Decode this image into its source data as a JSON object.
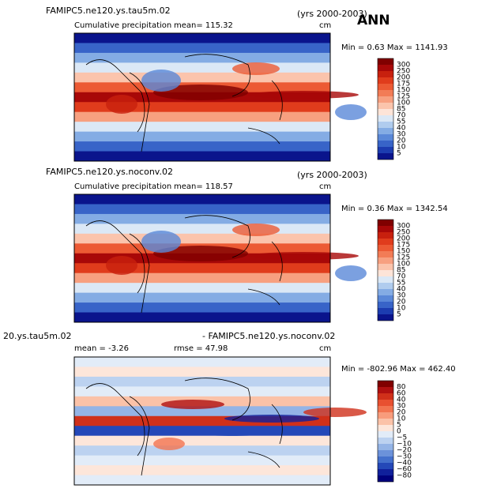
{
  "season": "ANN",
  "panels": [
    {
      "title": "FAMIPC5.ne120.ys.tau5m.02",
      "years": "(yrs 2000-2003)",
      "subtitle": "Cumulative precipitation",
      "mean": "mean= 115.32",
      "units": "cm",
      "minmax": "Min =    0.63  Max = 1141.93",
      "levels": [
        "300",
        "250",
        "200",
        "175",
        "150",
        "125",
        "100",
        "85",
        "70",
        "55",
        "40",
        "30",
        "20",
        "10",
        "5"
      ],
      "colors": [
        "#800000",
        "#a80808",
        "#c8200e",
        "#e03c1c",
        "#ec5a34",
        "#f27c56",
        "#f7a080",
        "#fbc4ac",
        "#fde4d8",
        "#dbe8f6",
        "#b0ccee",
        "#84ace4",
        "#5a88d8",
        "#3864c8",
        "#1c3cb0",
        "#0a148c"
      ]
    },
    {
      "title": "FAMIPC5.ne120.ys.noconv.02",
      "years": "(yrs 2000-2003)",
      "subtitle": "Cumulative precipitation",
      "mean": "mean= 118.57",
      "units": "cm",
      "minmax": "Min =    0.36  Max = 1342.54",
      "levels": [
        "300",
        "250",
        "200",
        "175",
        "150",
        "125",
        "100",
        "85",
        "70",
        "55",
        "40",
        "30",
        "20",
        "10",
        "5"
      ],
      "colors": [
        "#800000",
        "#a80808",
        "#c8200e",
        "#e03c1c",
        "#ec5a34",
        "#f27c56",
        "#f7a080",
        "#fbc4ac",
        "#fde4d8",
        "#dbe8f6",
        "#b0ccee",
        "#84ace4",
        "#5a88d8",
        "#3864c8",
        "#1c3cb0",
        "#0a148c"
      ]
    },
    {
      "title": "20.ys.tau5m.02",
      "years": "- FAMIPC5.ne120.ys.noconv.02",
      "mean": "mean =   -3.26",
      "rmse": "rmse =  47.98",
      "units": "cm",
      "minmax": "Min = -802.96  Max = 462.40",
      "levels": [
        "80",
        "60",
        "40",
        "30",
        "20",
        "10",
        "5",
        "0",
        "−5",
        "−10",
        "−20",
        "−30",
        "−40",
        "−60",
        "−80"
      ],
      "colors": [
        "#800000",
        "#b01010",
        "#d0301a",
        "#e85030",
        "#f27450",
        "#f89c7c",
        "#fbc2a8",
        "#fde6da",
        "#e2ecf8",
        "#bcd2f0",
        "#94b4e6",
        "#6c92da",
        "#4470cc",
        "#2448b8",
        "#10209c",
        "#00007c"
      ]
    }
  ]
}
